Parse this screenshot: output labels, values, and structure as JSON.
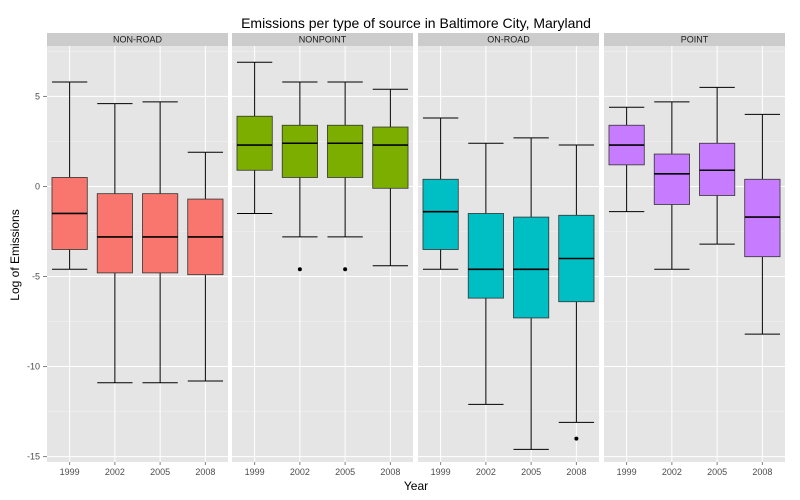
{
  "chart_data": {
    "type": "box",
    "title": "Emissions per type of source in Baltimore City, Maryland",
    "xlabel": "Year",
    "ylabel": "Log of Emissions",
    "ylim": [
      -15.3,
      7.8
    ],
    "yticks": [
      5,
      0,
      -5,
      -10,
      -15
    ],
    "ytick_labels": [
      "5",
      "0",
      "-5",
      "-10",
      "-15"
    ],
    "categories": [
      "1999",
      "2002",
      "2005",
      "2008"
    ],
    "grid": true,
    "legend": "none",
    "panels": [
      {
        "name": "NON-ROAD",
        "color": "#f8766d",
        "boxes": [
          {
            "x": "1999",
            "whisker_low": -4.6,
            "q1": -3.5,
            "median": -1.5,
            "q3": 0.5,
            "whisker_high": 5.8,
            "outliers": []
          },
          {
            "x": "2002",
            "whisker_low": -10.9,
            "q1": -4.8,
            "median": -2.8,
            "q3": -0.4,
            "whisker_high": 4.6,
            "outliers": []
          },
          {
            "x": "2005",
            "whisker_low": -10.9,
            "q1": -4.8,
            "median": -2.8,
            "q3": -0.4,
            "whisker_high": 4.7,
            "outliers": []
          },
          {
            "x": "2008",
            "whisker_low": -10.8,
            "q1": -4.9,
            "median": -2.8,
            "q3": -0.7,
            "whisker_high": 1.9,
            "outliers": []
          }
        ]
      },
      {
        "name": "NONPOINT",
        "color": "#7cae00",
        "boxes": [
          {
            "x": "1999",
            "whisker_low": -1.5,
            "q1": 0.9,
            "median": 2.3,
            "q3": 3.9,
            "whisker_high": 6.9,
            "outliers": []
          },
          {
            "x": "2002",
            "whisker_low": -2.8,
            "q1": 0.5,
            "median": 2.4,
            "q3": 3.4,
            "whisker_high": 5.8,
            "outliers": [
              -4.6
            ]
          },
          {
            "x": "2005",
            "whisker_low": -2.8,
            "q1": 0.5,
            "median": 2.4,
            "q3": 3.4,
            "whisker_high": 5.8,
            "outliers": [
              -4.6
            ]
          },
          {
            "x": "2008",
            "whisker_low": -4.4,
            "q1": -0.1,
            "median": 2.3,
            "q3": 3.3,
            "whisker_high": 5.4,
            "outliers": []
          }
        ]
      },
      {
        "name": "ON-ROAD",
        "color": "#00bfc4",
        "boxes": [
          {
            "x": "1999",
            "whisker_low": -4.6,
            "q1": -3.5,
            "median": -1.4,
            "q3": 0.4,
            "whisker_high": 3.8,
            "outliers": []
          },
          {
            "x": "2002",
            "whisker_low": -12.1,
            "q1": -6.2,
            "median": -4.6,
            "q3": -1.5,
            "whisker_high": 2.4,
            "outliers": []
          },
          {
            "x": "2005",
            "whisker_low": -14.6,
            "q1": -7.3,
            "median": -4.6,
            "q3": -1.7,
            "whisker_high": 2.7,
            "outliers": []
          },
          {
            "x": "2008",
            "whisker_low": -13.1,
            "q1": -6.4,
            "median": -4.0,
            "q3": -1.6,
            "whisker_high": 2.3,
            "outliers": [
              -14.0
            ]
          }
        ]
      },
      {
        "name": "POINT",
        "color": "#c77cff",
        "boxes": [
          {
            "x": "1999",
            "whisker_low": -1.4,
            "q1": 1.2,
            "median": 2.3,
            "q3": 3.4,
            "whisker_high": 4.4,
            "outliers": []
          },
          {
            "x": "2002",
            "whisker_low": -4.6,
            "q1": -1.0,
            "median": 0.7,
            "q3": 1.8,
            "whisker_high": 4.7,
            "outliers": []
          },
          {
            "x": "2005",
            "whisker_low": -3.2,
            "q1": -0.5,
            "median": 0.9,
            "q3": 2.4,
            "whisker_high": 5.5,
            "outliers": []
          },
          {
            "x": "2008",
            "whisker_low": -8.2,
            "q1": -3.9,
            "median": -1.7,
            "q3": 0.4,
            "whisker_high": 4.0,
            "outliers": []
          }
        ]
      }
    ]
  }
}
